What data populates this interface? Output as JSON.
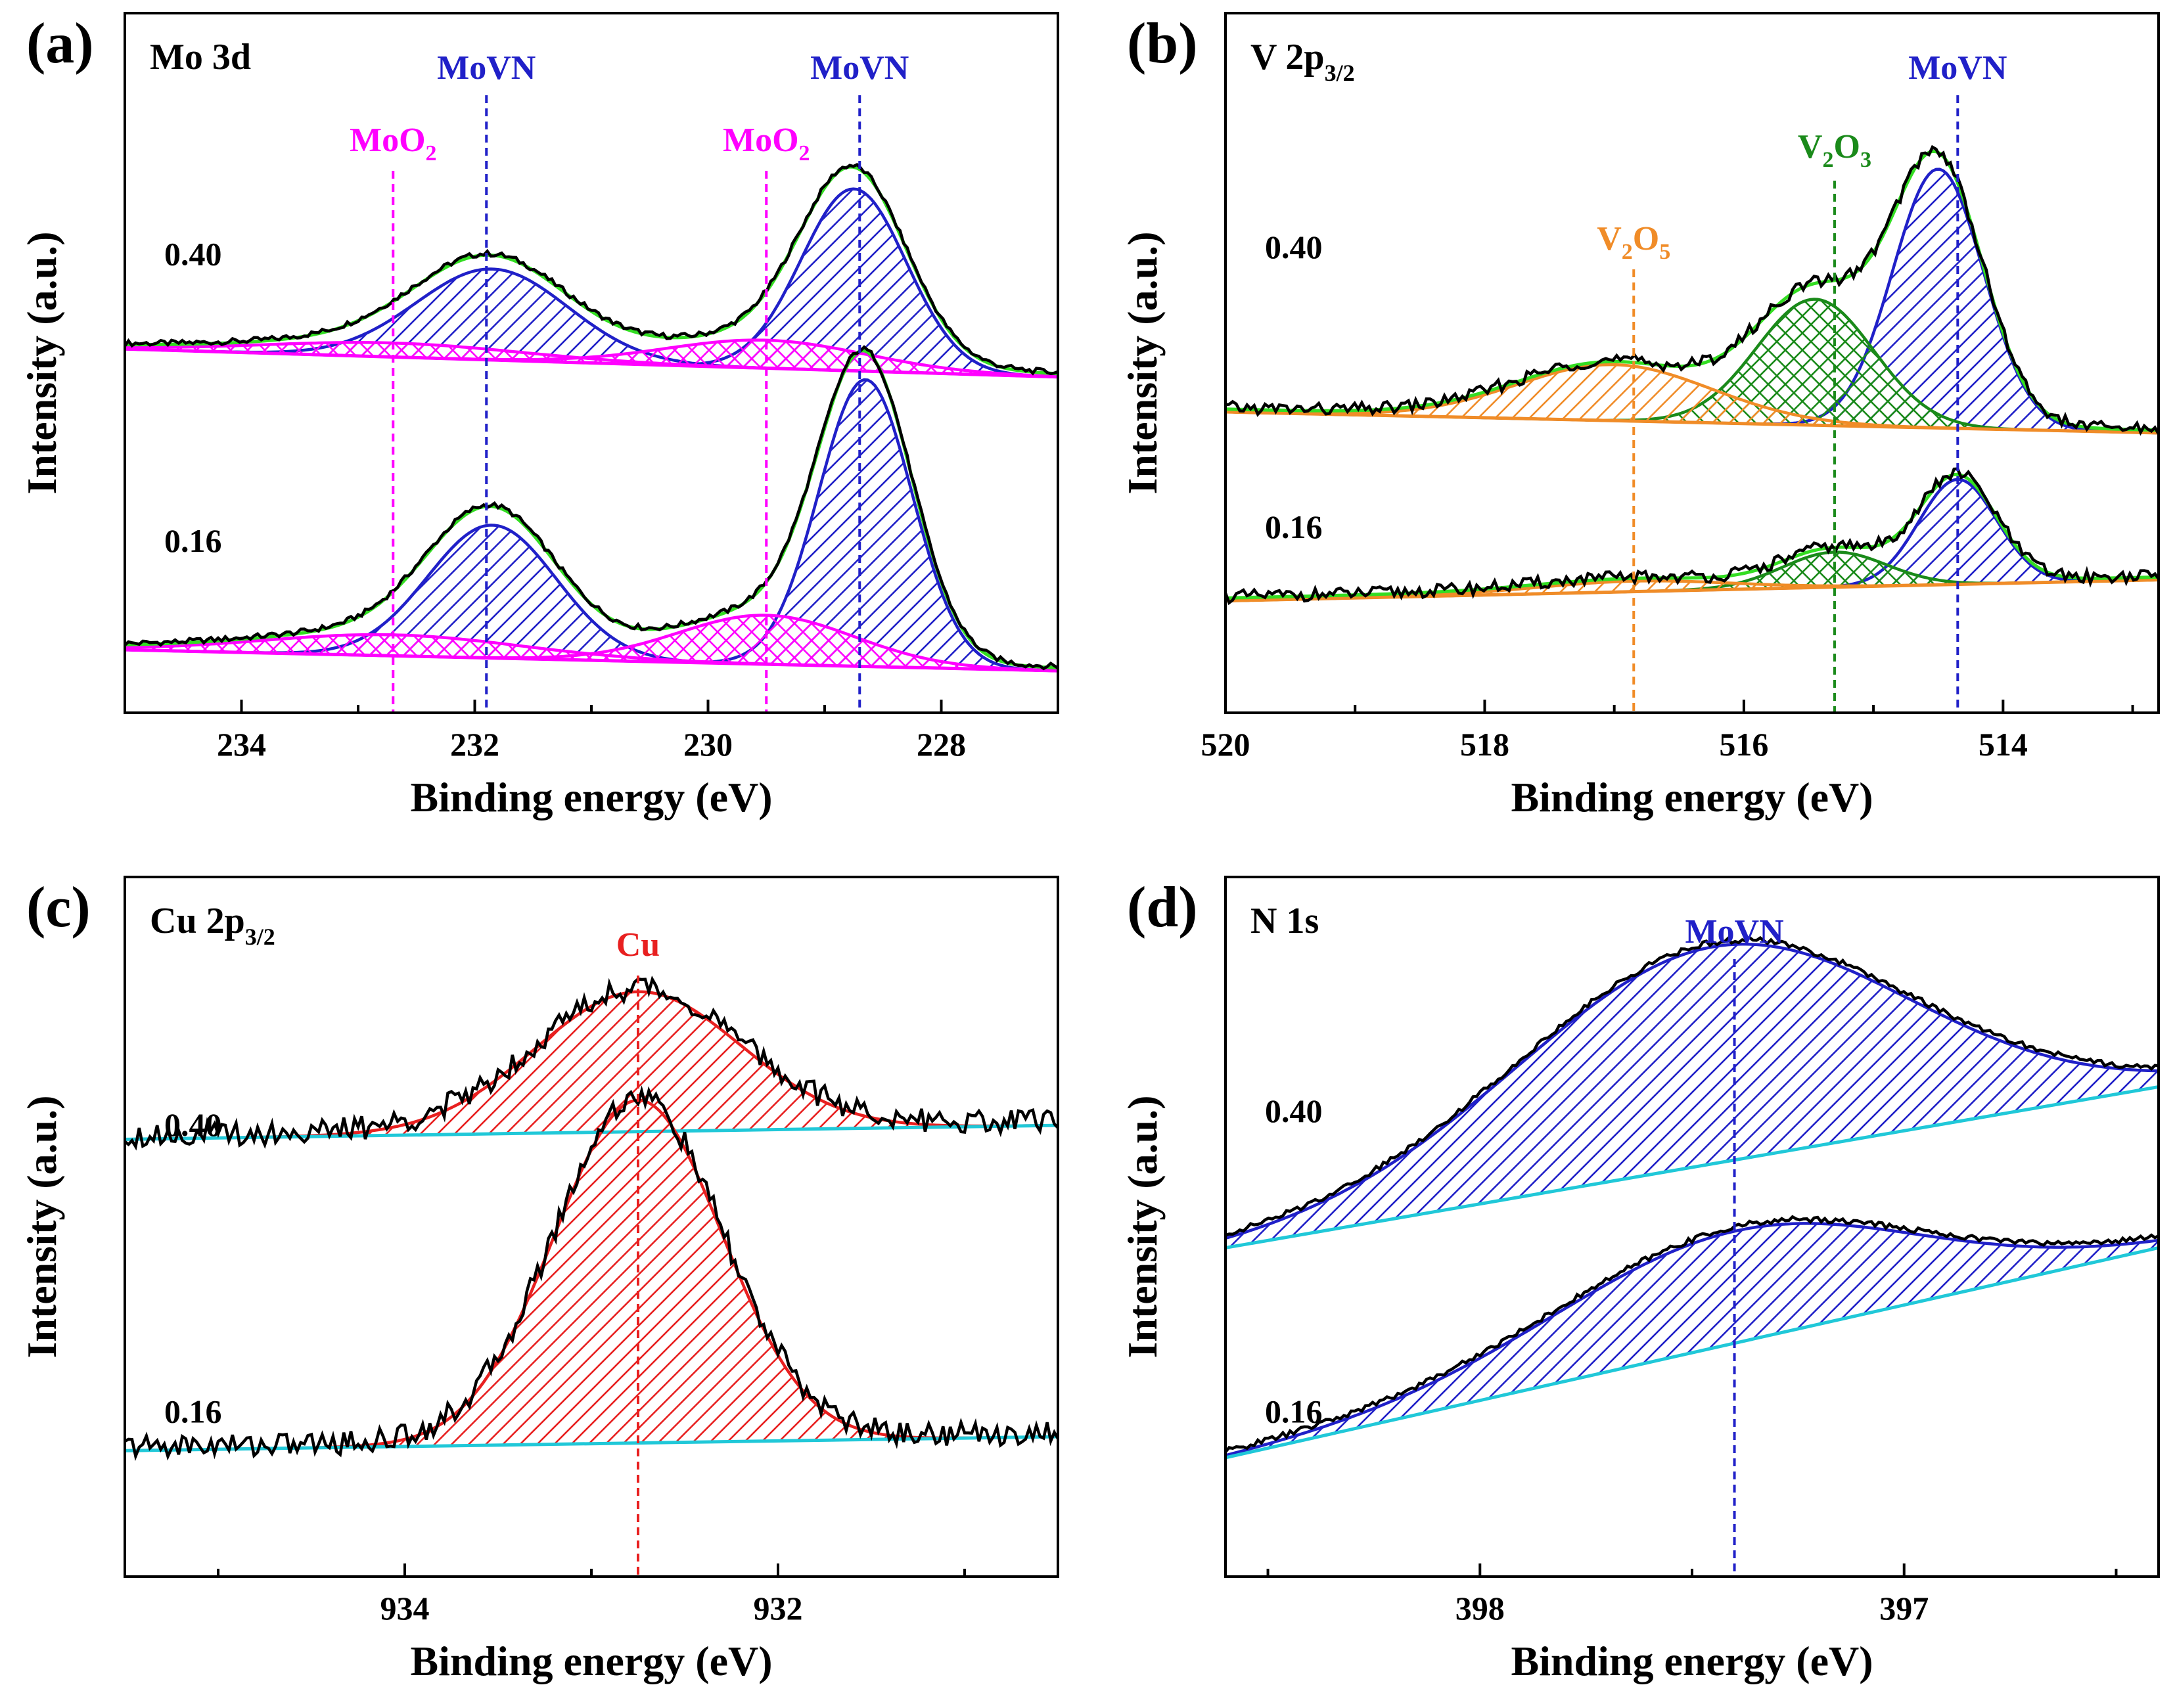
{
  "chart_data": [
    {
      "panel": "(a)",
      "type": "line",
      "core_level": "Mo 3d",
      "xlabel": "Binding energy (eV)",
      "ylabel": "Intensity (a.u.)",
      "xlim": [
        235,
        227
      ],
      "ylim": [
        0,
        1
      ],
      "xticks": [
        "234",
        "232",
        "230",
        "228"
      ],
      "xtick_values": [
        234,
        232,
        230,
        228
      ],
      "sample_labels": [
        "0.40",
        "0.16"
      ],
      "colors": {
        "data": "#000000",
        "envelope": "#33dd22",
        "MoVN": "#2020c8",
        "MoO2": "#ff00ff",
        "background": "#ff00ff"
      },
      "markers": [
        {
          "label": "MoO",
          "sub": "2",
          "energy": 232.7,
          "color": "#ff00ff"
        },
        {
          "label": "MoVN",
          "sub": "",
          "energy": 231.9,
          "color": "#2020c8"
        },
        {
          "label": "MoO",
          "sub": "2",
          "energy": 229.5,
          "color": "#ff00ff"
        },
        {
          "label": "MoVN",
          "sub": "",
          "energy": 228.7,
          "color": "#2020c8"
        }
      ],
      "traces": [
        {
          "sample": "0.40",
          "baseline": [
            [
              235,
              0.52
            ],
            [
              227,
              0.48
            ]
          ],
          "peaks": [
            {
              "species": "MoVN",
              "center": 231.85,
              "height": 0.13,
              "width": 0.65,
              "color": "#2020c8",
              "hatch": "single"
            },
            {
              "species": "MoVN",
              "center": 228.75,
              "height": 0.26,
              "width": 0.45,
              "color": "#2020c8",
              "hatch": "single"
            },
            {
              "species": "MoO2",
              "center": 232.7,
              "height": 0.02,
              "width": 1.1,
              "color": "#ff00ff",
              "hatch": "cross"
            },
            {
              "species": "MoO2",
              "center": 229.5,
              "height": 0.04,
              "width": 0.85,
              "color": "#ff00ff",
              "hatch": "cross"
            }
          ]
        },
        {
          "sample": "0.16",
          "baseline": [
            [
              235,
              0.09
            ],
            [
              227,
              0.06
            ]
          ],
          "peaks": [
            {
              "species": "MoVN",
              "center": 231.85,
              "height": 0.19,
              "width": 0.55,
              "color": "#2020c8",
              "hatch": "single"
            },
            {
              "species": "MoVN",
              "center": 228.65,
              "height": 0.41,
              "width": 0.4,
              "color": "#2020c8",
              "hatch": "single"
            },
            {
              "species": "MoO2",
              "center": 232.7,
              "height": 0.03,
              "width": 1.1,
              "color": "#ff00ff",
              "hatch": "cross"
            },
            {
              "species": "MoO2",
              "center": 229.5,
              "height": 0.07,
              "width": 0.75,
              "color": "#ff00ff",
              "hatch": "cross"
            }
          ]
        }
      ]
    },
    {
      "panel": "(b)",
      "type": "line",
      "core_level": "V 2p",
      "core_level_sub": "3/2",
      "xlabel": "Binding energy (eV)",
      "ylabel": "Intensity (a.u.)",
      "xlim": [
        520,
        512.8
      ],
      "ylim": [
        0,
        1
      ],
      "xticks": [
        "520",
        "518",
        "516",
        "514"
      ],
      "xtick_values": [
        520,
        518,
        516,
        514
      ],
      "sample_labels": [
        "0.40",
        "0.16"
      ],
      "colors": {
        "data": "#000000",
        "envelope": "#33dd22",
        "MoVN": "#2020c8",
        "V2O3": "#1a8a1a",
        "V2O5": "#f08c28",
        "background": "#f08c28"
      },
      "markers": [
        {
          "label": "V",
          "sub": "2",
          "label2": "O",
          "sub2": "5",
          "energy": 516.85,
          "color": "#f08c28"
        },
        {
          "label": "V",
          "sub": "2",
          "label2": "O",
          "sub2": "3",
          "energy": 515.3,
          "color": "#1a8a1a"
        },
        {
          "label": "MoVN",
          "sub": "",
          "energy": 514.35,
          "color": "#2020c8"
        }
      ],
      "traces": [
        {
          "sample": "0.40",
          "baseline": [
            [
              520,
              0.43
            ],
            [
              512.8,
              0.4
            ]
          ],
          "peaks": [
            {
              "species": "MoVN",
              "center": 514.5,
              "height": 0.37,
              "width": 0.35,
              "color": "#2020c8",
              "hatch": "single"
            },
            {
              "species": "V2O3",
              "center": 515.45,
              "height": 0.18,
              "width": 0.45,
              "color": "#1a8a1a",
              "hatch": "cross"
            },
            {
              "species": "V2O5",
              "center": 517.0,
              "height": 0.08,
              "width": 0.75,
              "color": "#f08c28",
              "hatch": "single"
            }
          ]
        },
        {
          "sample": "0.16",
          "baseline": [
            [
              520,
              0.16
            ],
            [
              512.8,
              0.19
            ]
          ],
          "peaks": [
            {
              "species": "MoVN",
              "center": 514.35,
              "height": 0.15,
              "width": 0.3,
              "color": "#2020c8",
              "hatch": "single"
            },
            {
              "species": "V2O3",
              "center": 515.3,
              "height": 0.05,
              "width": 0.4,
              "color": "#1a8a1a",
              "hatch": "cross"
            },
            {
              "species": "V2O5",
              "center": 516.85,
              "height": 0.015,
              "width": 0.75,
              "color": "#f08c28",
              "hatch": "single"
            }
          ]
        }
      ]
    },
    {
      "panel": "(c)",
      "type": "line",
      "core_level": "Cu 2p",
      "core_level_sub": "3/2",
      "xlabel": "Binding energy (eV)",
      "ylabel": "Intensity (a.u.)",
      "xlim": [
        935.5,
        930.5
      ],
      "ylim": [
        0,
        1
      ],
      "xticks": [
        "934",
        "932"
      ],
      "xtick_values": [
        934,
        932
      ],
      "sample_labels": [
        "0.40",
        "0.16"
      ],
      "colors": {
        "data": "#000000",
        "fit": "#e82020",
        "background": "#20c8d8"
      },
      "markers": [
        {
          "label": "Cu",
          "sub": "",
          "energy": 932.75,
          "color": "#e82020"
        }
      ],
      "traces": [
        {
          "sample": "0.40",
          "baseline": [
            [
              935.5,
              0.625
            ],
            [
              930.5,
              0.645
            ]
          ],
          "peaks": [
            {
              "species": "Cu",
              "center": 932.75,
              "height": 0.2,
              "width": 0.55,
              "color": "#e82020",
              "hatch": "single"
            }
          ]
        },
        {
          "sample": "0.16",
          "baseline": [
            [
              935.5,
              0.18
            ],
            [
              930.5,
              0.2
            ]
          ],
          "peaks": [
            {
              "species": "Cu",
              "center": 932.75,
              "height": 0.49,
              "width": 0.45,
              "color": "#e82020",
              "hatch": "single"
            }
          ]
        }
      ]
    },
    {
      "panel": "(d)",
      "type": "line",
      "core_level": "N 1s",
      "xlabel": "Binding energy (eV)",
      "ylabel": "Intensity (a.u.)",
      "xlim": [
        398.6,
        396.4
      ],
      "ylim": [
        0,
        1
      ],
      "xticks": [
        "398",
        "397"
      ],
      "xtick_values": [
        398,
        397
      ],
      "sample_labels": [
        "0.40",
        "0.16"
      ],
      "colors": {
        "data": "#000000",
        "fit": "#2020c8",
        "background": "#20c8d8"
      },
      "markers": [
        {
          "label": "MoVN",
          "sub": "",
          "energy": 397.4,
          "color": "#2020c8"
        }
      ],
      "traces": [
        {
          "sample": "0.40",
          "baseline": [
            [
              398.6,
              0.47
            ],
            [
              396.4,
              0.7
            ]
          ],
          "peaks": [
            {
              "species": "MoVN",
              "center": 397.45,
              "height": 0.31,
              "width": 0.46,
              "color": "#2020c8",
              "hatch": "single"
            }
          ]
        },
        {
          "sample": "0.16",
          "baseline": [
            [
              398.6,
              0.17
            ],
            [
              396.4,
              0.47
            ]
          ],
          "peaks": [
            {
              "species": "MoVN",
              "center": 397.4,
              "height": 0.16,
              "width": 0.43,
              "color": "#2020c8",
              "hatch": "single"
            }
          ]
        }
      ]
    }
  ]
}
